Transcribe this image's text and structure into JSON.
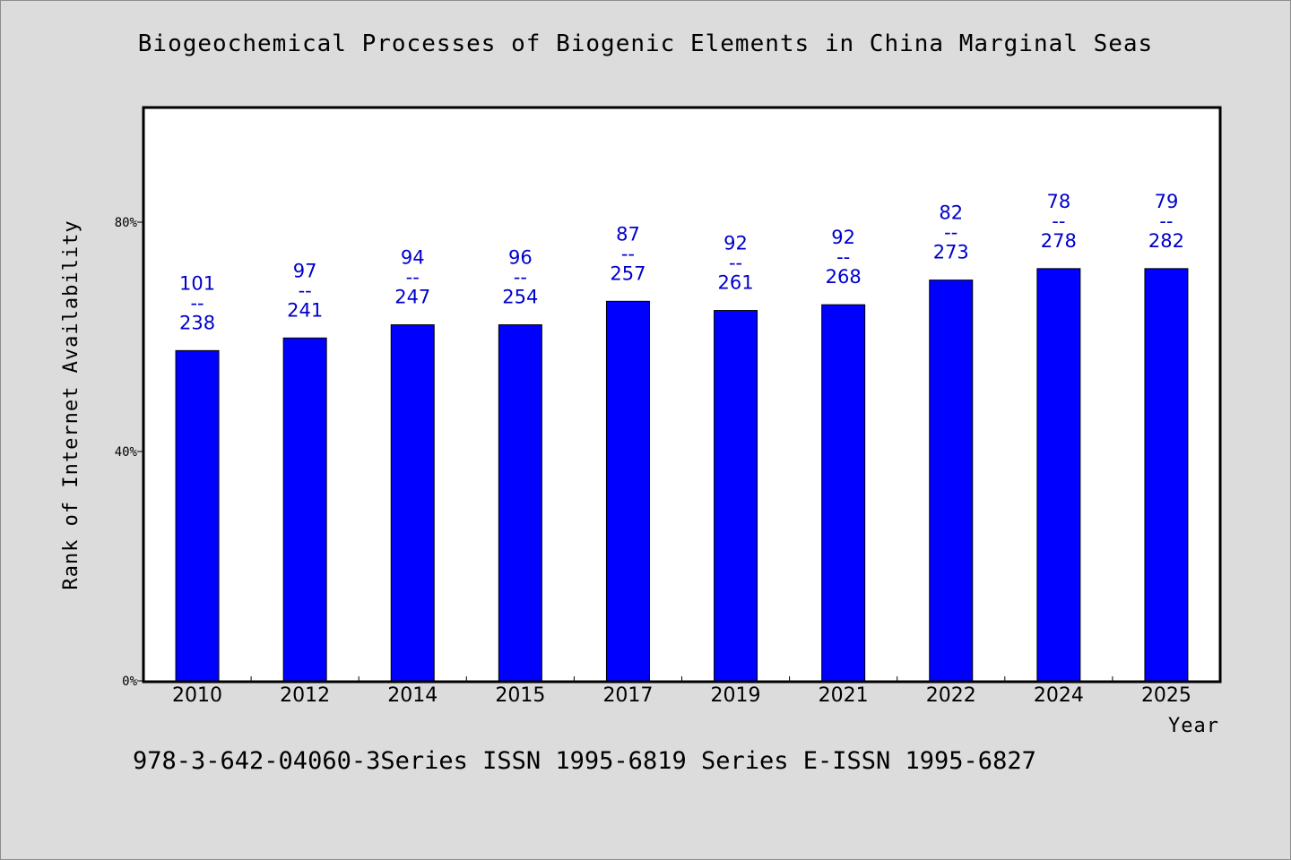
{
  "chart_data": {
    "type": "bar",
    "title": "Biogeochemical Processes of Biogenic Elements in China Marginal Seas",
    "xlabel": "Year",
    "ylabel": "Rank of Internet Availability",
    "categories": [
      "2010",
      "2012",
      "2014",
      "2015",
      "2017",
      "2019",
      "2021",
      "2022",
      "2024",
      "2025"
    ],
    "values": [
      57.6,
      59.8,
      62.1,
      62.1,
      66.2,
      64.6,
      65.6,
      69.9,
      71.9,
      71.9
    ],
    "labels_top": [
      "101",
      "97",
      "94",
      "96",
      "87",
      "92",
      "92",
      "82",
      "78",
      "79"
    ],
    "labels_sep": "--",
    "labels_bottom": [
      "238",
      "241",
      "247",
      "254",
      "257",
      "261",
      "268",
      "273",
      "278",
      "282"
    ],
    "ylim": [
      0,
      100
    ],
    "yticks": [
      0,
      40,
      80
    ],
    "ytick_labels": [
      "0%",
      "40%",
      "80%"
    ],
    "grid": false,
    "bar_color": "#0000ff",
    "label_color": "#0000cc"
  },
  "footer": {
    "text": "978-3-642-04060-3Series ISSN 1995-6819 Series E-ISSN 1995-6827"
  }
}
